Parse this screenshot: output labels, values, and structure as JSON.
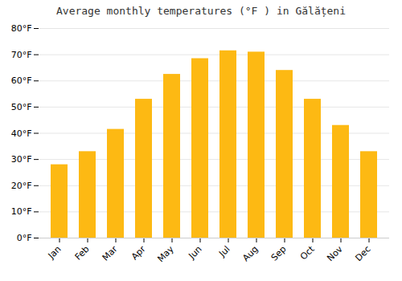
{
  "chart_data": {
    "type": "bar",
    "title": "Average monthly temperatures (°F ) in Gălățeni",
    "categories": [
      "Jan",
      "Feb",
      "Mar",
      "Apr",
      "May",
      "Jun",
      "Jul",
      "Aug",
      "Sep",
      "Oct",
      "Nov",
      "Dec"
    ],
    "values": [
      28,
      33,
      41.5,
      53,
      62.5,
      68.5,
      71.5,
      71,
      64,
      53,
      43,
      33
    ],
    "color": "#FDB913",
    "ylim": [
      0,
      80
    ],
    "yticks": [
      {
        "value": 0,
        "label": "0°F"
      },
      {
        "value": 10,
        "label": "10°F"
      },
      {
        "value": 20,
        "label": "20°F"
      },
      {
        "value": 30,
        "label": "30°F"
      },
      {
        "value": 40,
        "label": "40°F"
      },
      {
        "value": 50,
        "label": "50°F"
      },
      {
        "value": 60,
        "label": "60°F"
      },
      {
        "value": 70,
        "label": "70°F"
      },
      {
        "value": 80,
        "label": "80°F"
      }
    ],
    "grid": true
  }
}
